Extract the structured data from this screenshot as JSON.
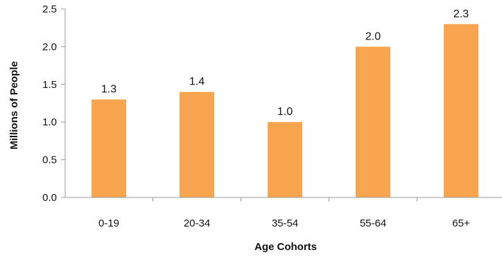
{
  "chart_data": {
    "type": "bar",
    "categories": [
      "0-19",
      "20-34",
      "35-54",
      "55-64",
      "65+"
    ],
    "values": [
      1.3,
      1.4,
      1.0,
      2.0,
      2.3
    ],
    "data_labels": [
      "1.3",
      "1.4",
      "1.0",
      "2.0",
      "2.3"
    ],
    "title": "",
    "xlabel": "Age Cohorts",
    "ylabel": "Millions of People",
    "ylim": [
      0,
      2.5
    ],
    "y_ticks": [
      0.0,
      0.5,
      1.0,
      1.5,
      2.0,
      2.5
    ],
    "y_tick_labels": [
      "0.0",
      "0.5",
      "1.0",
      "1.5",
      "2.0",
      "2.5"
    ],
    "grid": false,
    "legend": "none",
    "bar_color": "#F9A54F",
    "axis_color": "#999999"
  }
}
